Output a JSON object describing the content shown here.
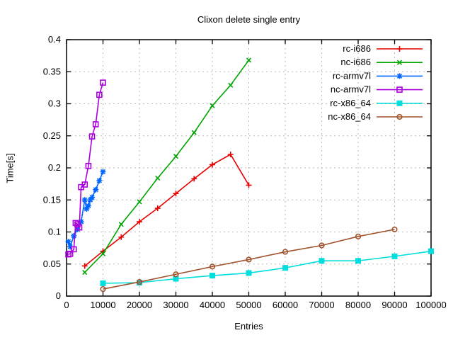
{
  "title": "Clixon delete single entry",
  "xlabel": "Entries",
  "ylabel": "Time[s]",
  "chart_data": {
    "type": "line",
    "title": "Clixon delete single entry",
    "xlabel": "Entries",
    "ylabel": "Time[s]",
    "xlim": [
      0,
      100000
    ],
    "ylim": [
      0,
      0.4
    ],
    "xticks": [
      0,
      10000,
      20000,
      30000,
      40000,
      50000,
      60000,
      70000,
      80000,
      90000,
      100000
    ],
    "yticks": [
      0,
      0.05,
      0.1,
      0.15,
      0.2,
      0.25,
      0.3,
      0.35,
      0.4
    ],
    "grid": true,
    "grid_color": "#b8b8b8",
    "legend_position": "top-right-inside",
    "series": [
      {
        "name": "rc-i686",
        "color": "#e60000",
        "marker": "plus",
        "x": [
          5000,
          10000,
          15000,
          20000,
          25000,
          30000,
          35000,
          40000,
          45000,
          50000
        ],
        "y": [
          0.047,
          0.07,
          0.092,
          0.116,
          0.137,
          0.16,
          0.183,
          0.205,
          0.221,
          0.173
        ]
      },
      {
        "name": "nc-i686",
        "color": "#00a400",
        "marker": "x",
        "x": [
          5000,
          10000,
          15000,
          20000,
          25000,
          30000,
          35000,
          40000,
          45000,
          50000
        ],
        "y": [
          0.037,
          0.066,
          0.112,
          0.147,
          0.184,
          0.218,
          0.255,
          0.297,
          0.329,
          0.368
        ]
      },
      {
        "name": "rc-armv7l",
        "color": "#0066ff",
        "marker": "asterisk",
        "x": [
          500,
          1000,
          2000,
          3000,
          4000,
          5000,
          5500,
          6000,
          6500,
          7000,
          8000,
          9000,
          10000
        ],
        "y": [
          0.085,
          0.077,
          0.094,
          0.104,
          0.116,
          0.15,
          0.136,
          0.141,
          0.15,
          0.154,
          0.166,
          0.18,
          0.194
        ]
      },
      {
        "name": "nc-armv7l",
        "color": "#aa00dd",
        "marker": "open-square",
        "x": [
          500,
          1000,
          2000,
          2500,
          3000,
          3500,
          4000,
          5000,
          6000,
          7000,
          8000,
          9000,
          10000
        ],
        "y": [
          0.065,
          0.066,
          0.073,
          0.114,
          0.112,
          0.107,
          0.17,
          0.174,
          0.203,
          0.249,
          0.268,
          0.314,
          0.333
        ]
      },
      {
        "name": "rc-x86_64",
        "color": "#00dede",
        "marker": "filled-square",
        "x": [
          10000,
          20000,
          30000,
          40000,
          50000,
          60000,
          70000,
          80000,
          90000,
          100000
        ],
        "y": [
          0.02,
          0.021,
          0.027,
          0.032,
          0.036,
          0.044,
          0.055,
          0.055,
          0.062,
          0.07
        ]
      },
      {
        "name": "nc-x86_64",
        "color": "#a0522d",
        "marker": "open-circle",
        "x": [
          10000,
          20000,
          30000,
          40000,
          50000,
          60000,
          70000,
          80000,
          90000
        ],
        "y": [
          0.011,
          0.022,
          0.034,
          0.046,
          0.057,
          0.069,
          0.079,
          0.093,
          0.104
        ]
      }
    ]
  }
}
